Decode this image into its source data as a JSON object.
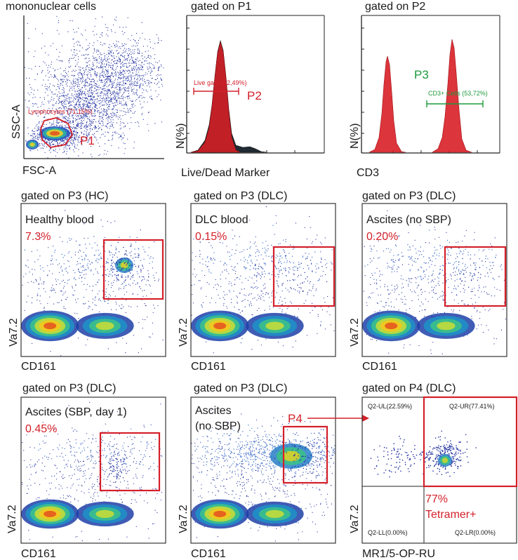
{
  "figure": {
    "colors": {
      "red": "#d4202a",
      "green": "#1e9a3c",
      "dark": "#1a1a1a",
      "dot_blue": "#1f2f9e"
    },
    "panels": [
      {
        "id": "A",
        "title": "mononuclear cells",
        "xlabel": "FSC-A",
        "ylabel": "SSC-A",
        "gate_name": "P1",
        "gate_text": "Lymphocytes (71,15%)"
      },
      {
        "id": "B",
        "title": "gated on P1",
        "xlabel": "Live/Dead Marker",
        "ylabel": "N(%)",
        "gate_name": "P2",
        "gate_text": "Live gate (92,49%)"
      },
      {
        "id": "C",
        "title": "gated on P2",
        "xlabel": "CD3",
        "ylabel": "N(%)",
        "gate_name": "P3",
        "gate_text": "CD3+ Cells (53,72%)"
      },
      {
        "id": "D",
        "title": "gated on P3 (HC)",
        "sample": "Healthy blood",
        "percent": "7.3%",
        "xlabel": "CD161",
        "ylabel": "Va7.2"
      },
      {
        "id": "E",
        "title": "gated on P3 (DLC)",
        "sample": "DLC blood",
        "percent": "0.15%",
        "xlabel": "CD161",
        "ylabel": "Va7.2"
      },
      {
        "id": "F",
        "title": "gated on P3 (DLC)",
        "sample": "Ascites (no SBP)",
        "percent": "0.20%",
        "xlabel": "CD161",
        "ylabel": "Va7.2"
      },
      {
        "id": "G",
        "title": "gated on P3 (DLC)",
        "sample": "Ascites (SBP, day 1)",
        "percent": "0.45%",
        "xlabel": "CD161",
        "ylabel": "Va7.2"
      },
      {
        "id": "H",
        "title": "gated on P3 (DLC)",
        "sample_line1": "Ascites",
        "sample_line2": "(no SBP)",
        "gate_name": "P4",
        "xlabel": "CD161",
        "ylabel": "Va7.2"
      },
      {
        "id": "I",
        "title": "gated on P4 (DLC)",
        "xlabel": "MR1/5-OP-RU",
        "ylabel": "Va7.2",
        "quadrants": {
          "UL": "Q2-UL(22.59%)",
          "UR": "Q2-UR(77.41%)",
          "LL": "Q2-LL(0.00%)",
          "LR": "Q2-LR(0.00%)"
        },
        "percent": "77%",
        "label": "Tetramer+"
      }
    ]
  },
  "chart_data": [
    {
      "panel": "A",
      "type": "scatter",
      "title": "mononuclear cells",
      "xlabel": "FSC-A",
      "ylabel": "SSC-A",
      "gates": [
        {
          "name": "P1",
          "label": "Lymphocytes (71,15%)",
          "percent": 71.15
        }
      ]
    },
    {
      "panel": "B",
      "type": "area",
      "title": "gated on P1",
      "xlabel": "Live/Dead Marker",
      "ylabel": "N(%)",
      "gates": [
        {
          "name": "P2",
          "label": "Live gate (92,49%)",
          "percent": 92.49
        }
      ]
    },
    {
      "panel": "C",
      "type": "area",
      "title": "gated on P2",
      "xlabel": "CD3",
      "ylabel": "N(%)",
      "gates": [
        {
          "name": "P3",
          "label": "CD3+ Cells (53,72%)",
          "percent": 53.72
        }
      ]
    },
    {
      "panel": "D",
      "type": "heatmap",
      "title": "gated on P3 (HC)",
      "sample": "Healthy blood",
      "xlabel": "CD161",
      "ylabel": "Va7.2",
      "gate_percent": 7.3
    },
    {
      "panel": "E",
      "type": "heatmap",
      "title": "gated on P3 (DLC)",
      "sample": "DLC blood",
      "xlabel": "CD161",
      "ylabel": "Va7.2",
      "gate_percent": 0.15
    },
    {
      "panel": "F",
      "type": "heatmap",
      "title": "gated on P3 (DLC)",
      "sample": "Ascites (no SBP)",
      "xlabel": "CD161",
      "ylabel": "Va7.2",
      "gate_percent": 0.2
    },
    {
      "panel": "G",
      "type": "heatmap",
      "title": "gated on P3 (DLC)",
      "sample": "Ascites (SBP, day 1)",
      "xlabel": "CD161",
      "ylabel": "Va7.2",
      "gate_percent": 0.45
    },
    {
      "panel": "H",
      "type": "heatmap",
      "title": "gated on P3 (DLC)",
      "sample": "Ascites (no SBP)",
      "xlabel": "CD161",
      "ylabel": "Va7.2",
      "gates": [
        {
          "name": "P4"
        }
      ]
    },
    {
      "panel": "I",
      "type": "scatter",
      "title": "gated on P4 (DLC)",
      "xlabel": "MR1/5-OP-RU",
      "ylabel": "Va7.2",
      "quadrants": {
        "UL": 22.59,
        "UR": 77.41,
        "LL": 0.0,
        "LR": 0.0
      },
      "gate_percent": 77,
      "gate_label": "Tetramer+"
    }
  ]
}
